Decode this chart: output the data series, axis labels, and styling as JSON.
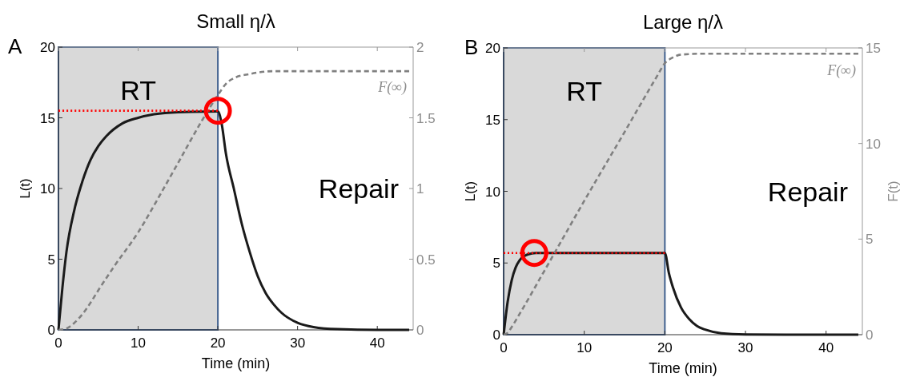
{
  "chart_data": [
    {
      "type": "line",
      "title": "Small η/λ",
      "xlabel": "Time (min)",
      "ylabel": "L(t)",
      "annotations": [
        "A",
        "Repair",
        "F(∞)"
      ],
      "xlim": [
        0,
        44.5
      ],
      "xticks": [
        0,
        10,
        20,
        30,
        40
      ],
      "ylim": [
        0,
        20
      ],
      "yticks": [
        0,
        5,
        10,
        15,
        20
      ],
      "y2lim": [
        0,
        2
      ],
      "y2ticks": [
        0,
        0.5,
        1,
        1.5,
        2
      ],
      "grid": false,
      "bands": [
        {
          "axis": "x",
          "from": 0,
          "to": 20,
          "label": "RT",
          "color": "#d9d9d9"
        }
      ],
      "series": [
        {
          "color": "#1a1a1a",
          "line_style": "solid",
          "x": [
            0,
            0.5,
            1,
            2,
            3,
            4,
            5,
            6,
            8,
            10,
            12,
            15,
            20,
            20.5,
            21,
            22,
            23,
            24,
            25,
            26,
            27,
            28,
            30,
            32,
            35,
            40,
            44
          ],
          "values": [
            0,
            3,
            5.5,
            8.5,
            10.5,
            12,
            13,
            13.7,
            14.6,
            15,
            15.25,
            15.4,
            15.45,
            14.5,
            12.5,
            10,
            7.5,
            5.5,
            3.8,
            2.6,
            1.8,
            1.2,
            0.5,
            0.2,
            0.05,
            0,
            0
          ]
        },
        {
          "color": "#808080",
          "line_style": "dashed",
          "axis": "y2",
          "x": [
            0,
            1,
            2,
            3,
            4,
            5,
            7,
            10,
            13,
            15,
            18,
            20,
            21,
            22,
            24,
            27,
            44
          ],
          "values": [
            0,
            0.01,
            0.05,
            0.11,
            0.19,
            0.28,
            0.45,
            0.69,
            0.98,
            1.18,
            1.48,
            1.66,
            1.74,
            1.78,
            1.81,
            1.83,
            1.83
          ]
        },
        {
          "color": "#ff0000",
          "line_style": "dotted",
          "x": [
            0,
            20
          ],
          "values": [
            15.5,
            15.5
          ]
        }
      ]
    },
    {
      "type": "line",
      "title": "Large η/λ",
      "xlabel": "Time (min)",
      "ylabel": "L(t)",
      "y2label": "F(t)",
      "annotations": [
        "B",
        "Repair",
        "F(∞)"
      ],
      "xlim": [
        0,
        44.5
      ],
      "xticks": [
        0,
        10,
        20,
        30,
        40
      ],
      "ylim": [
        0,
        20
      ],
      "yticks": [
        0,
        5,
        10,
        15,
        20
      ],
      "y2lim": [
        0,
        15
      ],
      "y2ticks": [
        0,
        5,
        10,
        15
      ],
      "grid": false,
      "bands": [
        {
          "axis": "x",
          "from": 0,
          "to": 20,
          "label": "RT",
          "color": "#d9d9d9"
        }
      ],
      "series": [
        {
          "color": "#1a1a1a",
          "line_style": "solid",
          "x": [
            0,
            0.5,
            1,
            1.5,
            2,
            3,
            4,
            6,
            10,
            15,
            20,
            20.5,
            21,
            22,
            23,
            24,
            25,
            27,
            30,
            35,
            44
          ],
          "values": [
            0,
            2.3,
            3.8,
            4.7,
            5.2,
            5.6,
            5.7,
            5.7,
            5.7,
            5.7,
            5.7,
            4.3,
            3.3,
            1.9,
            1.1,
            0.6,
            0.35,
            0.1,
            0.02,
            0,
            0
          ]
        },
        {
          "color": "#808080",
          "line_style": "dashed",
          "axis": "y2",
          "x": [
            0,
            0.5,
            1,
            2,
            5,
            10,
            15,
            19,
            20,
            21,
            22,
            25,
            44
          ],
          "values": [
            0,
            0.1,
            0.4,
            1.1,
            3.3,
            7,
            10.6,
            13.5,
            14.2,
            14.5,
            14.65,
            14.7,
            14.7
          ]
        },
        {
          "color": "#ff0000",
          "line_style": "dotted",
          "x": [
            0,
            20
          ],
          "values": [
            5.7,
            5.7
          ]
        }
      ]
    }
  ]
}
